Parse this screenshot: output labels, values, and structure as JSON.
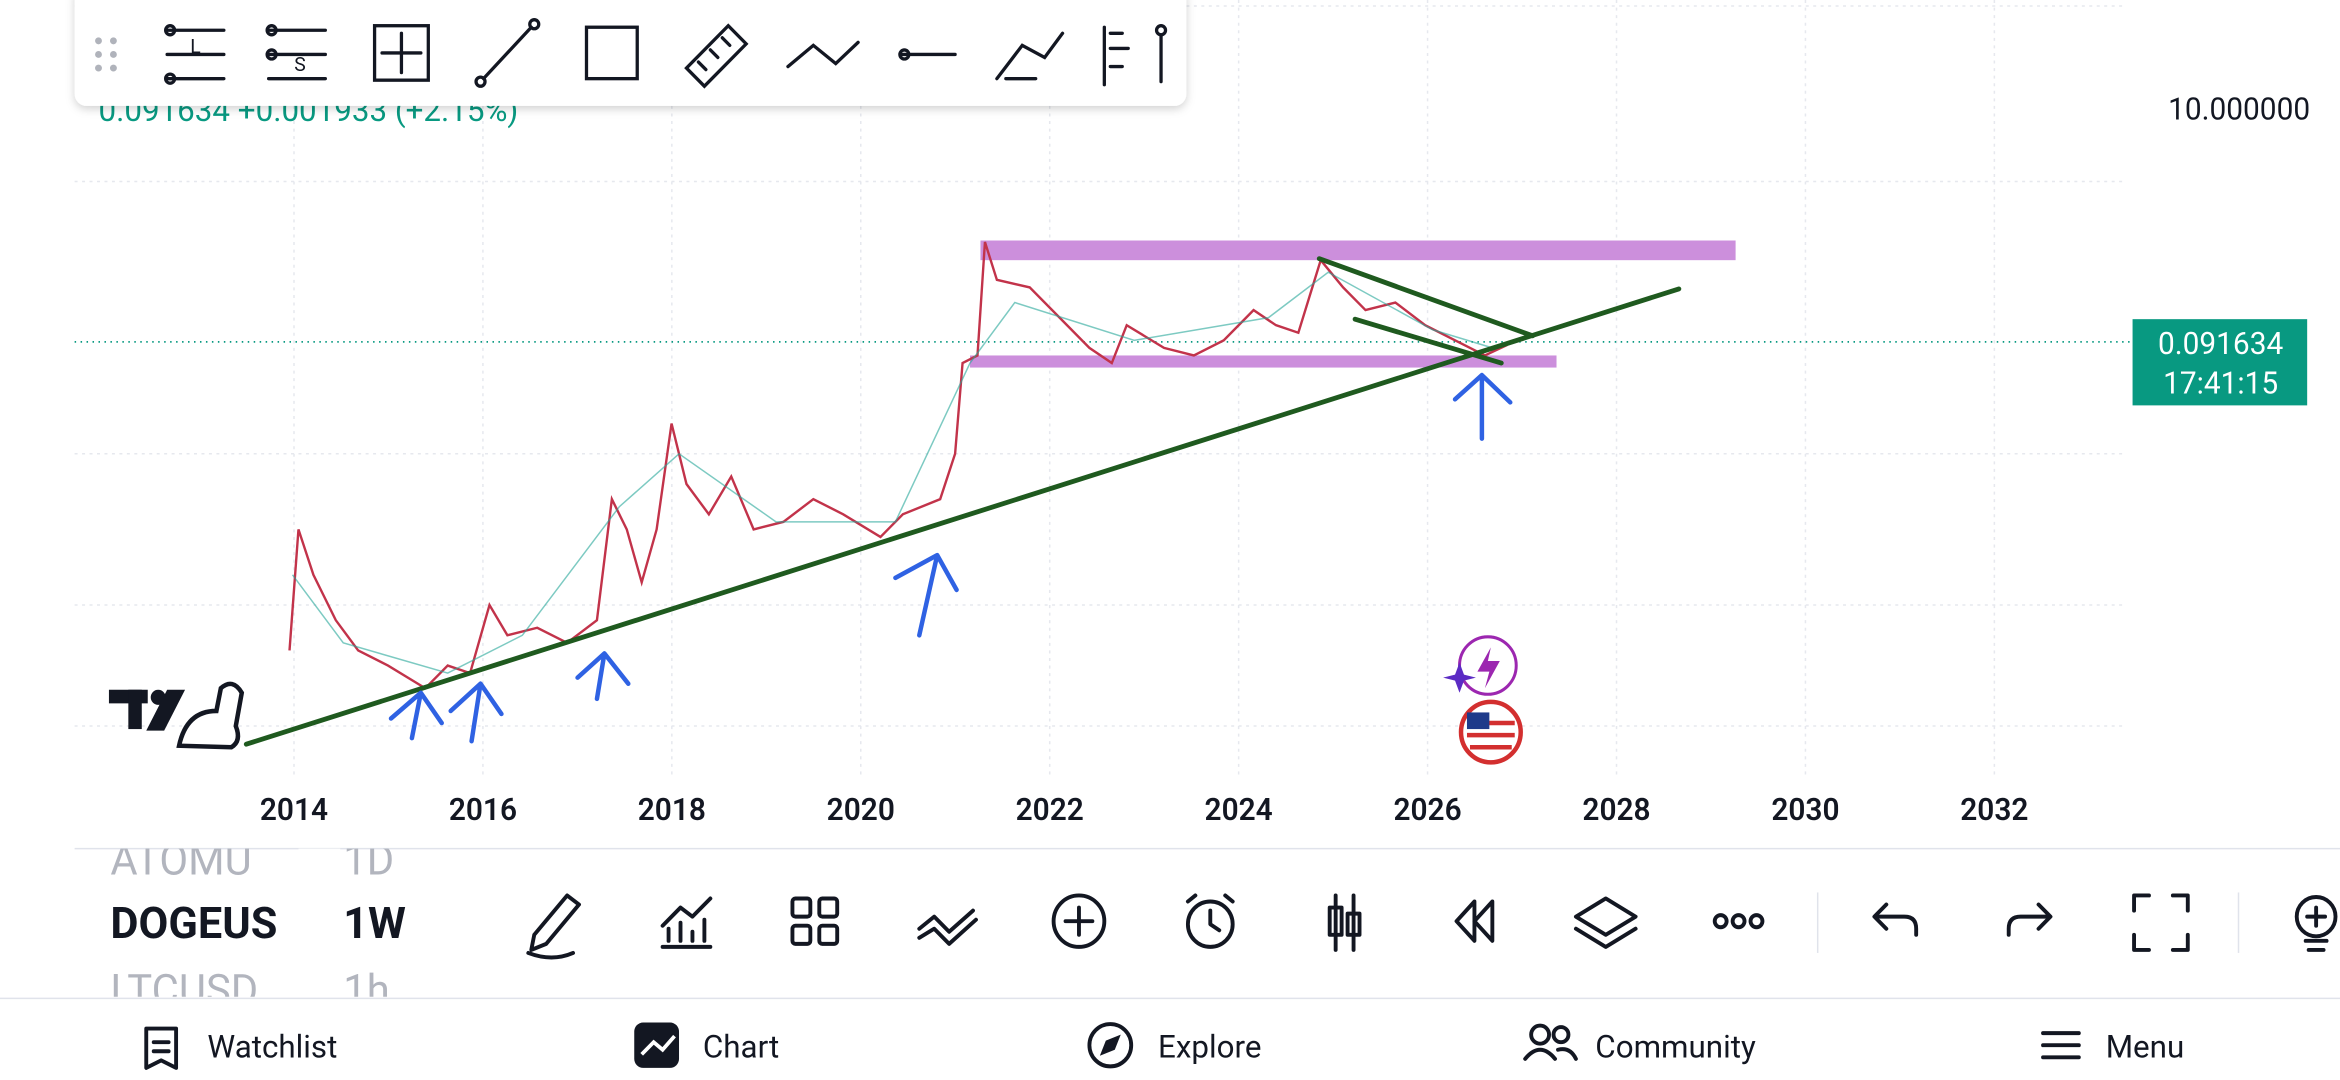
{
  "toolbar": {
    "tool_labels": [
      "L",
      "S"
    ]
  },
  "chart": {
    "quote": {
      "price": "0.091634",
      "change": "+0.001933",
      "percent": "(+2.15%)"
    },
    "scale_top": "10.000000",
    "price_tag": {
      "price": "0.091634",
      "countdown": "17:41:15"
    },
    "x_axis_labels": [
      "2014",
      "2016",
      "2018",
      "2020",
      "2022",
      "2024",
      "2026",
      "2028",
      "2030",
      "2032"
    ]
  },
  "symbols": [
    {
      "symbol": "ATOMU",
      "interval": "1D"
    },
    {
      "symbol": "DOGEUS",
      "interval": "1W"
    },
    {
      "symbol": "LTCUSD",
      "interval": "1h"
    }
  ],
  "nav": [
    "Watchlist",
    "Chart",
    "Explore",
    "Community",
    "Menu"
  ]
}
